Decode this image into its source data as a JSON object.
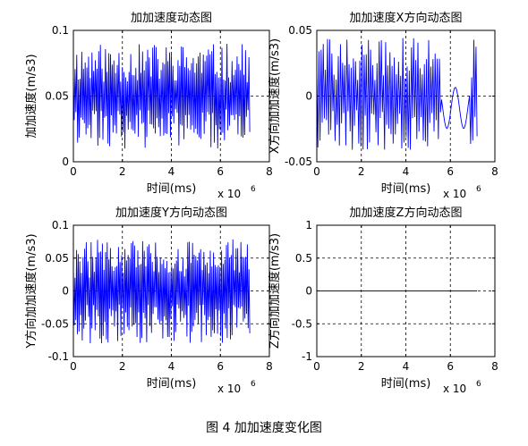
{
  "figure": {
    "caption": "图 4  加加速度变化图"
  },
  "chart_data": [
    {
      "type": "line",
      "title": "加加速度动态图",
      "xlabel": "时间(ms)",
      "ylabel": "加加速度(m/s3)",
      "x_multiplier": "x 10",
      "x_exponent": "6",
      "xlim": [
        0,
        8000000
      ],
      "ylim": [
        0,
        0.1
      ],
      "xticks": [
        0,
        2,
        4,
        6,
        8
      ],
      "yticks": [
        0,
        0.05,
        0.1
      ],
      "grid": true,
      "color": "#0000ff",
      "signal": {
        "x_start": 0,
        "x_end": 7200000,
        "mid": 0.05,
        "lo": 0.01,
        "hi": 0.09,
        "n": 210,
        "seed": 11,
        "gaps": []
      }
    },
    {
      "type": "line",
      "title": "加加速度X方向动态图",
      "xlabel": "时间(ms)",
      "ylabel": "X方向加加速度(m/s3)",
      "x_multiplier": "x 10",
      "x_exponent": "6",
      "xlim": [
        0,
        8000000
      ],
      "ylim": [
        -0.05,
        0.05
      ],
      "xticks": [
        0,
        2,
        4,
        6,
        8
      ],
      "yticks": [
        -0.05,
        0,
        0.05
      ],
      "grid": true,
      "color": "#0000ff",
      "signal": {
        "x_start": 0,
        "x_end": 7200000,
        "mid": 0.0,
        "lo": -0.042,
        "hi": 0.045,
        "n": 150,
        "seed": 29,
        "gaps": [
          [
            5600000,
            6900000
          ]
        ]
      }
    },
    {
      "type": "line",
      "title": "加加速度Y方向动态图",
      "xlabel": "时间(ms)",
      "ylabel": "Y方向加加速度(m/s3)",
      "x_multiplier": "x 10",
      "x_exponent": "6",
      "xlim": [
        0,
        8000000
      ],
      "ylim": [
        -0.1,
        0.1
      ],
      "xticks": [
        0,
        2,
        4,
        6,
        8
      ],
      "yticks": [
        -0.1,
        -0.05,
        0,
        0.05,
        0.1
      ],
      "grid": true,
      "color": "#0000ff",
      "signal": {
        "x_start": 0,
        "x_end": 7200000,
        "mid": 0.0,
        "lo": -0.08,
        "hi": 0.08,
        "n": 220,
        "seed": 47,
        "gaps": []
      }
    },
    {
      "type": "line",
      "title": "加加速度Z方向动态图",
      "xlabel": "时间(ms)",
      "ylabel": "Z方向加加速度(m/s3)",
      "x_multiplier": "x 10",
      "x_exponent": "6",
      "xlim": [
        0,
        8000000
      ],
      "ylim": [
        -1,
        1
      ],
      "xticks": [
        0,
        2,
        4,
        6,
        8
      ],
      "yticks": [
        -1,
        -0.5,
        0,
        0.5,
        1
      ],
      "grid": true,
      "color": "#0000ff",
      "series": [
        {
          "x": [
            0,
            7200000
          ],
          "y": [
            0,
            0
          ]
        }
      ]
    }
  ]
}
